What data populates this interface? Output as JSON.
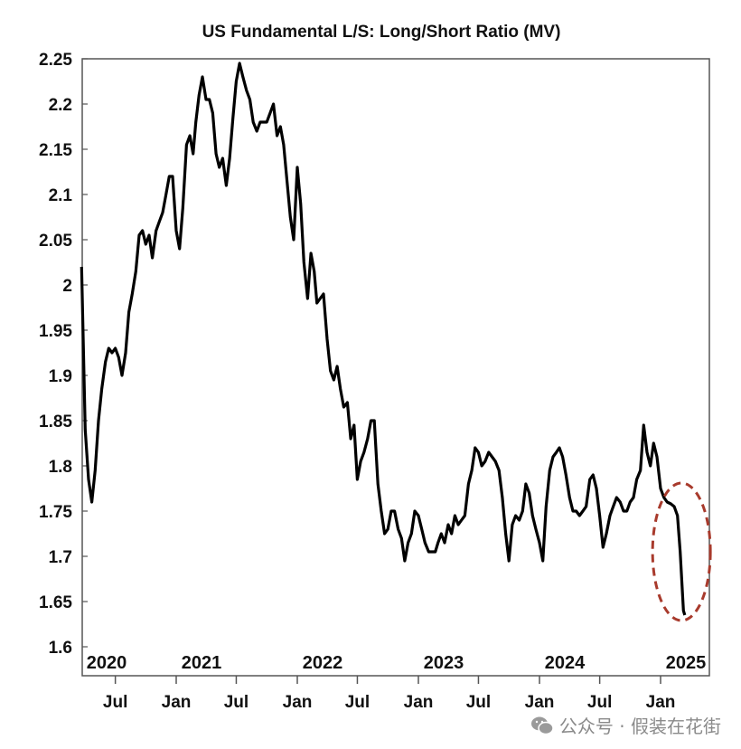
{
  "chart_data": {
    "type": "line",
    "title": "US Fundamental L/S: Long/Short Ratio (MV)",
    "xlabel": "",
    "ylabel": "",
    "ylim": [
      1.57,
      2.25
    ],
    "xlim": [
      "2020-03-21",
      "2025-04-15"
    ],
    "grid": false,
    "line_color": "#000000",
    "annotation_color": "#a83a2c",
    "annotation": "dashed red ellipse around the 2025 drop",
    "yticks": [
      "1.6",
      "1.65",
      "1.7",
      "1.75",
      "1.8",
      "1.85",
      "1.9",
      "1.95",
      "2",
      "2.05",
      "2.1",
      "2.15",
      "2.2",
      "2.25"
    ],
    "ytick_values": [
      1.6,
      1.65,
      1.7,
      1.75,
      1.8,
      1.85,
      1.9,
      1.95,
      2.0,
      2.05,
      2.1,
      2.15,
      2.2,
      2.25
    ],
    "year_labels": [
      "2020",
      "2021",
      "2022",
      "2023",
      "2024",
      "2025"
    ],
    "month_ticks": [
      {
        "date": "2020-07-01",
        "label": "Jul"
      },
      {
        "date": "2021-01-01",
        "label": "Jan"
      },
      {
        "date": "2021-07-01",
        "label": "Jul"
      },
      {
        "date": "2022-01-01",
        "label": "Jan"
      },
      {
        "date": "2022-07-01",
        "label": "Jul"
      },
      {
        "date": "2023-01-01",
        "label": "Jan"
      },
      {
        "date": "2023-07-01",
        "label": "Jul"
      },
      {
        "date": "2024-01-01",
        "label": "Jan"
      },
      {
        "date": "2024-07-01",
        "label": "Jul"
      },
      {
        "date": "2025-01-01",
        "label": "Jan"
      }
    ],
    "series": [
      {
        "x": [
          "2020-03-21",
          "2020-04-01",
          "2020-04-11",
          "2020-04-21",
          "2020-05-01",
          "2020-05-11",
          "2020-05-21",
          "2020-06-01",
          "2020-06-11",
          "2020-06-21",
          "2020-07-01",
          "2020-07-11",
          "2020-07-21",
          "2020-08-01",
          "2020-08-11",
          "2020-08-21",
          "2020-09-01",
          "2020-09-11",
          "2020-09-21",
          "2020-10-01",
          "2020-10-11",
          "2020-10-21",
          "2020-11-01",
          "2020-11-11",
          "2020-11-21",
          "2020-12-01",
          "2020-12-11",
          "2020-12-21",
          "2021-01-01",
          "2021-01-11",
          "2021-01-21",
          "2021-02-01",
          "2021-02-11",
          "2021-02-21",
          "2021-03-01",
          "2021-03-11",
          "2021-03-21",
          "2021-04-01",
          "2021-04-11",
          "2021-04-21",
          "2021-05-01",
          "2021-05-11",
          "2021-05-21",
          "2021-06-01",
          "2021-06-11",
          "2021-06-21",
          "2021-07-01",
          "2021-07-11",
          "2021-07-21",
          "2021-08-01",
          "2021-08-11",
          "2021-08-21",
          "2021-09-01",
          "2021-09-11",
          "2021-09-21",
          "2021-10-01",
          "2021-10-11",
          "2021-10-21",
          "2021-11-01",
          "2021-11-11",
          "2021-11-21",
          "2021-12-01",
          "2021-12-11",
          "2021-12-21",
          "2022-01-01",
          "2022-01-11",
          "2022-01-21",
          "2022-02-01",
          "2022-02-11",
          "2022-02-21",
          "2022-03-01",
          "2022-03-11",
          "2022-03-21",
          "2022-04-01",
          "2022-04-11",
          "2022-04-21",
          "2022-05-01",
          "2022-05-11",
          "2022-05-21",
          "2022-06-01",
          "2022-06-11",
          "2022-06-21",
          "2022-07-01",
          "2022-07-11",
          "2022-07-21",
          "2022-08-01",
          "2022-08-11",
          "2022-08-21",
          "2022-09-01",
          "2022-09-11",
          "2022-09-21",
          "2022-10-01",
          "2022-10-11",
          "2022-10-21",
          "2022-11-01",
          "2022-11-11",
          "2022-11-21",
          "2022-12-01",
          "2022-12-11",
          "2022-12-21",
          "2023-01-01",
          "2023-01-11",
          "2023-01-21",
          "2023-02-01",
          "2023-02-11",
          "2023-02-21",
          "2023-03-01",
          "2023-03-11",
          "2023-03-21",
          "2023-04-01",
          "2023-04-11",
          "2023-04-21",
          "2023-05-01",
          "2023-05-11",
          "2023-05-21",
          "2023-06-01",
          "2023-06-11",
          "2023-06-21",
          "2023-07-01",
          "2023-07-11",
          "2023-07-21",
          "2023-08-01",
          "2023-08-11",
          "2023-08-21",
          "2023-09-01",
          "2023-09-11",
          "2023-09-21",
          "2023-10-01",
          "2023-10-11",
          "2023-10-21",
          "2023-11-01",
          "2023-11-11",
          "2023-11-21",
          "2023-12-01",
          "2023-12-11",
          "2023-12-21",
          "2024-01-01",
          "2024-01-11",
          "2024-01-21",
          "2024-02-01",
          "2024-02-11",
          "2024-02-21",
          "2024-03-01",
          "2024-03-11",
          "2024-03-21",
          "2024-04-01",
          "2024-04-11",
          "2024-04-21",
          "2024-05-01",
          "2024-05-11",
          "2024-05-21",
          "2024-06-01",
          "2024-06-11",
          "2024-06-21",
          "2024-07-01",
          "2024-07-11",
          "2024-07-21",
          "2024-08-01",
          "2024-08-11",
          "2024-08-21",
          "2024-09-01",
          "2024-09-11",
          "2024-09-21",
          "2024-10-01",
          "2024-10-11",
          "2024-10-21",
          "2024-11-01",
          "2024-11-11",
          "2024-11-21",
          "2024-12-01",
          "2024-12-11",
          "2024-12-21",
          "2025-01-01",
          "2025-01-11",
          "2025-01-21",
          "2025-02-01",
          "2025-02-11",
          "2025-02-21",
          "2025-03-01",
          "2025-03-11",
          "2025-03-15"
        ],
        "values": [
          2.02,
          1.84,
          1.785,
          1.76,
          1.795,
          1.85,
          1.885,
          1.915,
          1.93,
          1.925,
          1.93,
          1.92,
          1.9,
          1.925,
          1.97,
          1.99,
          2.015,
          2.055,
          2.06,
          2.045,
          2.055,
          2.03,
          2.06,
          2.07,
          2.08,
          2.1,
          2.12,
          2.12,
          2.06,
          2.04,
          2.085,
          2.155,
          2.165,
          2.145,
          2.18,
          2.21,
          2.23,
          2.205,
          2.205,
          2.19,
          2.145,
          2.13,
          2.14,
          2.11,
          2.14,
          2.185,
          2.225,
          2.245,
          2.23,
          2.215,
          2.205,
          2.18,
          2.17,
          2.18,
          2.18,
          2.18,
          2.19,
          2.2,
          2.165,
          2.175,
          2.155,
          2.115,
          2.075,
          2.05,
          2.13,
          2.09,
          2.025,
          1.985,
          2.035,
          2.015,
          1.98,
          1.985,
          1.99,
          1.94,
          1.905,
          1.895,
          1.91,
          1.885,
          1.865,
          1.87,
          1.83,
          1.845,
          1.785,
          1.805,
          1.815,
          1.83,
          1.85,
          1.85,
          1.78,
          1.75,
          1.725,
          1.73,
          1.75,
          1.75,
          1.73,
          1.72,
          1.695,
          1.715,
          1.725,
          1.75,
          1.745,
          1.73,
          1.715,
          1.705,
          1.705,
          1.705,
          1.715,
          1.725,
          1.715,
          1.735,
          1.725,
          1.745,
          1.735,
          1.74,
          1.745,
          1.78,
          1.795,
          1.82,
          1.815,
          1.8,
          1.805,
          1.815,
          1.81,
          1.805,
          1.795,
          1.765,
          1.725,
          1.695,
          1.735,
          1.745,
          1.74,
          1.75,
          1.78,
          1.77,
          1.745,
          1.73,
          1.715,
          1.695,
          1.755,
          1.795,
          1.81,
          1.815,
          1.82,
          1.81,
          1.79,
          1.765,
          1.75,
          1.75,
          1.745,
          1.75,
          1.755,
          1.785,
          1.79,
          1.775,
          1.745,
          1.71,
          1.725,
          1.745,
          1.755,
          1.765,
          1.76,
          1.75,
          1.75,
          1.76,
          1.765,
          1.785,
          1.795,
          1.845,
          1.815,
          1.8,
          1.825,
          1.81,
          1.775,
          1.765,
          1.76,
          1.758,
          1.755,
          1.745,
          1.705,
          1.64,
          1.635
        ]
      }
    ]
  },
  "watermark": {
    "icon": "wechat-icon",
    "text": "公众号 · 假装在花街"
  }
}
